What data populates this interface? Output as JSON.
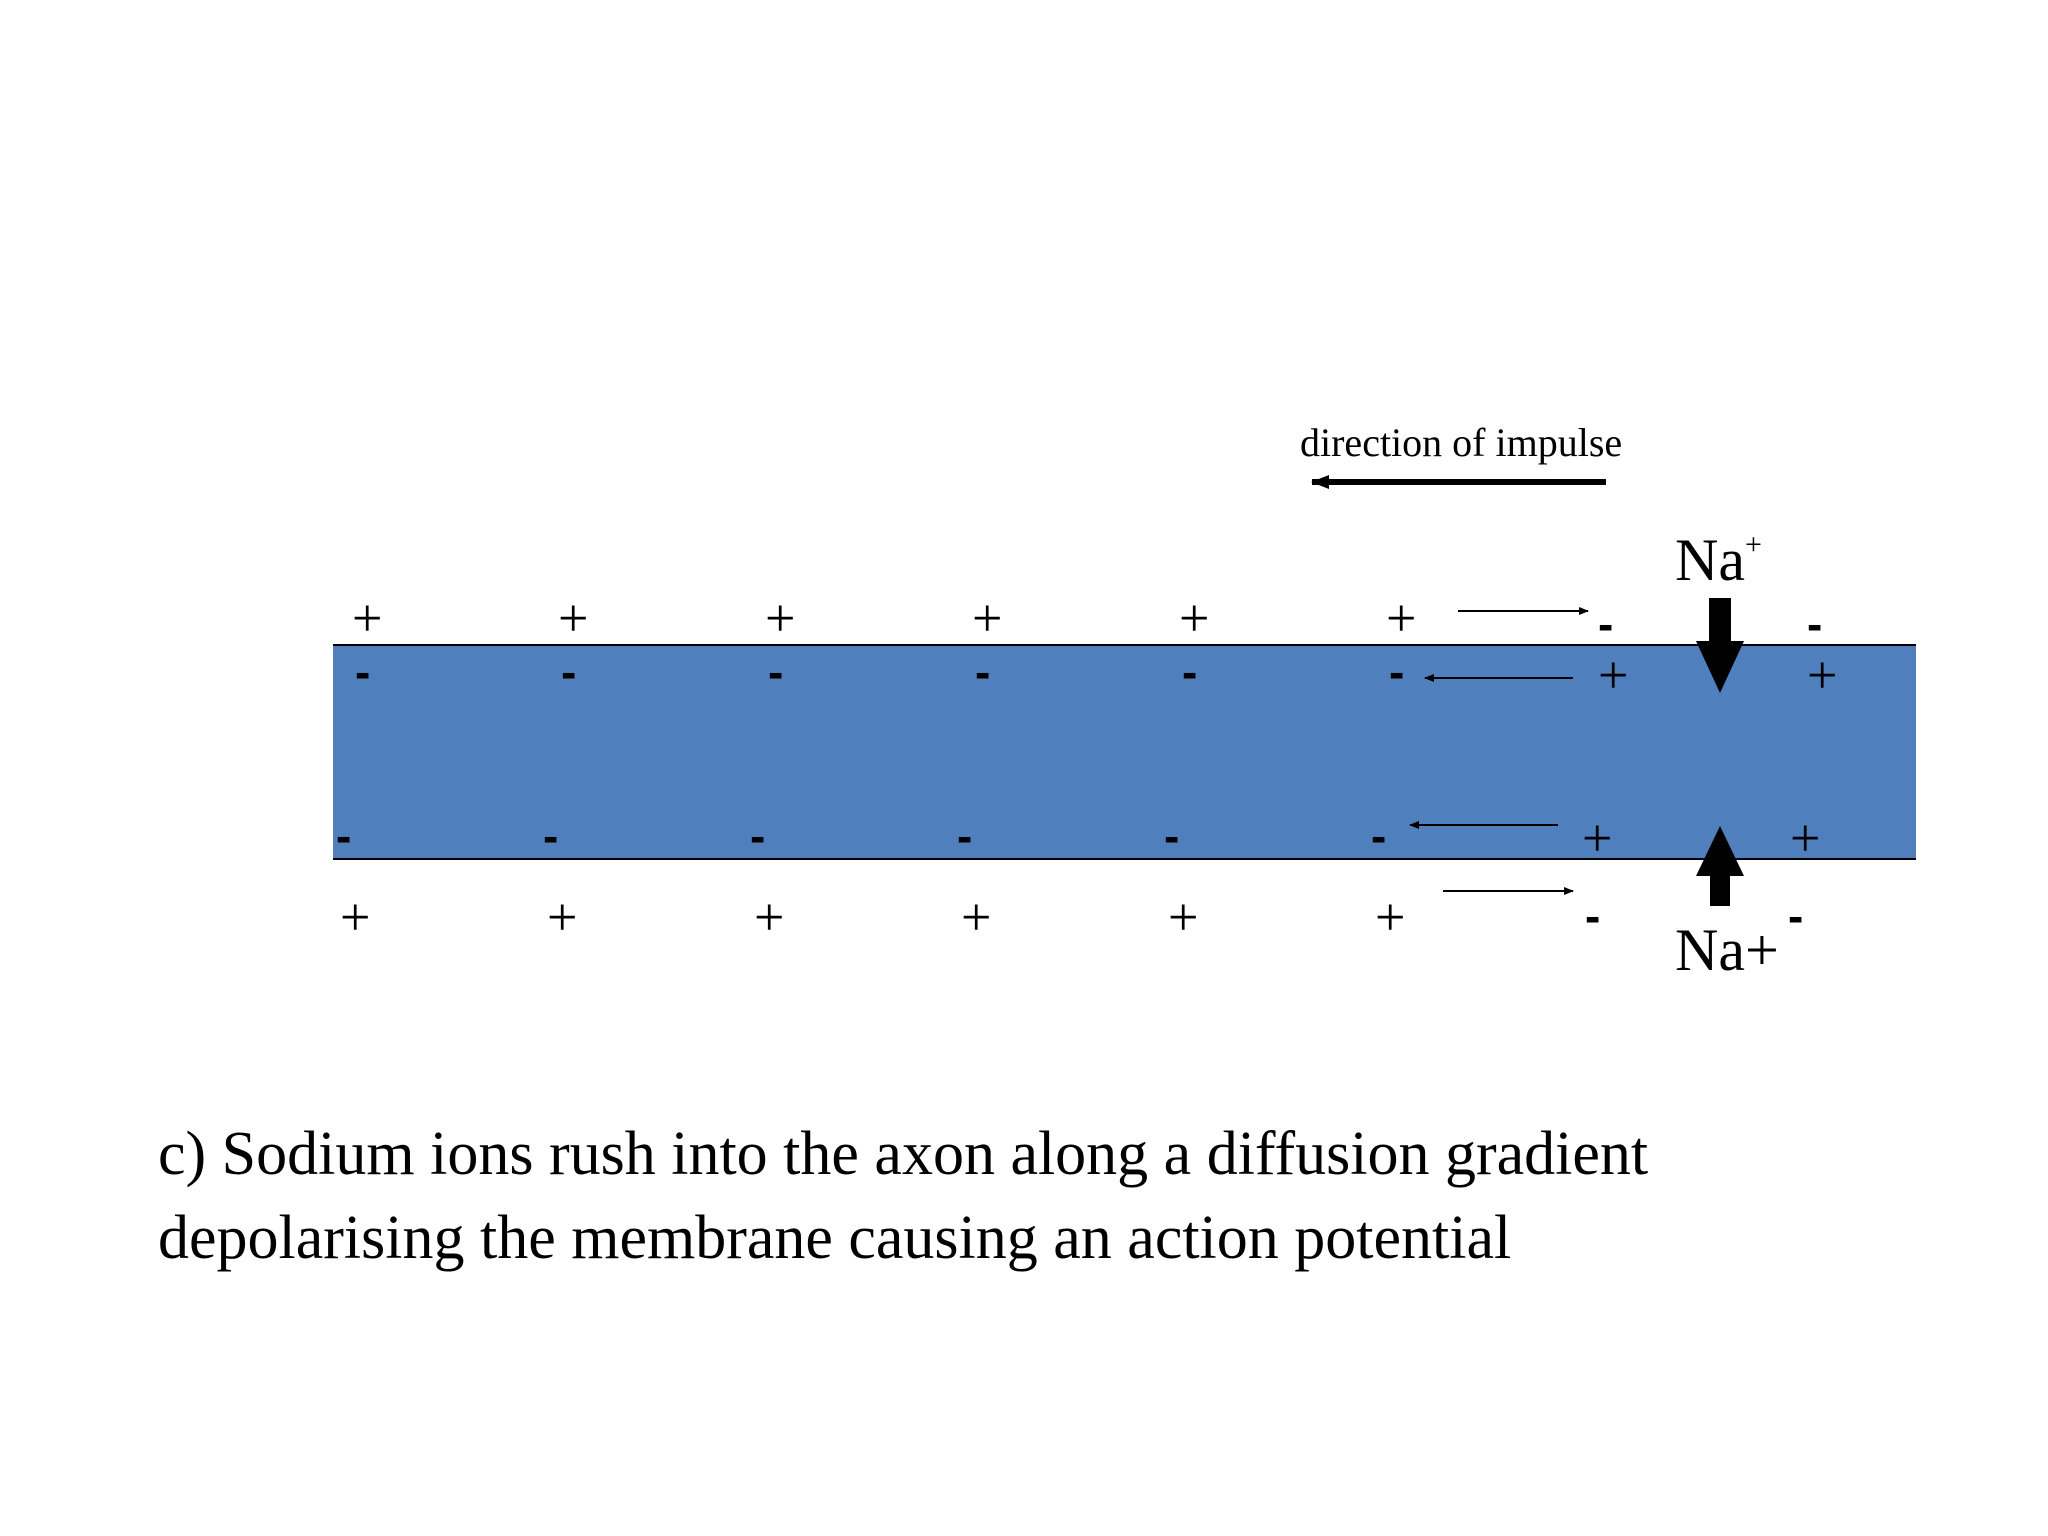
{
  "diagram": {
    "direction_label": "direction of impulse",
    "na_top": {
      "main": "Na",
      "superscript": "+"
    },
    "na_bottom": "Na+",
    "plus": "+",
    "minus": "-",
    "axon_color": "#4f7fbd",
    "stray_minus_bottom": "-"
  },
  "caption": {
    "line1": "c) Sodium ions rush into the axon along a diffusion gradient",
    "line2": "depolarising the membrane causing an action potential"
  }
}
